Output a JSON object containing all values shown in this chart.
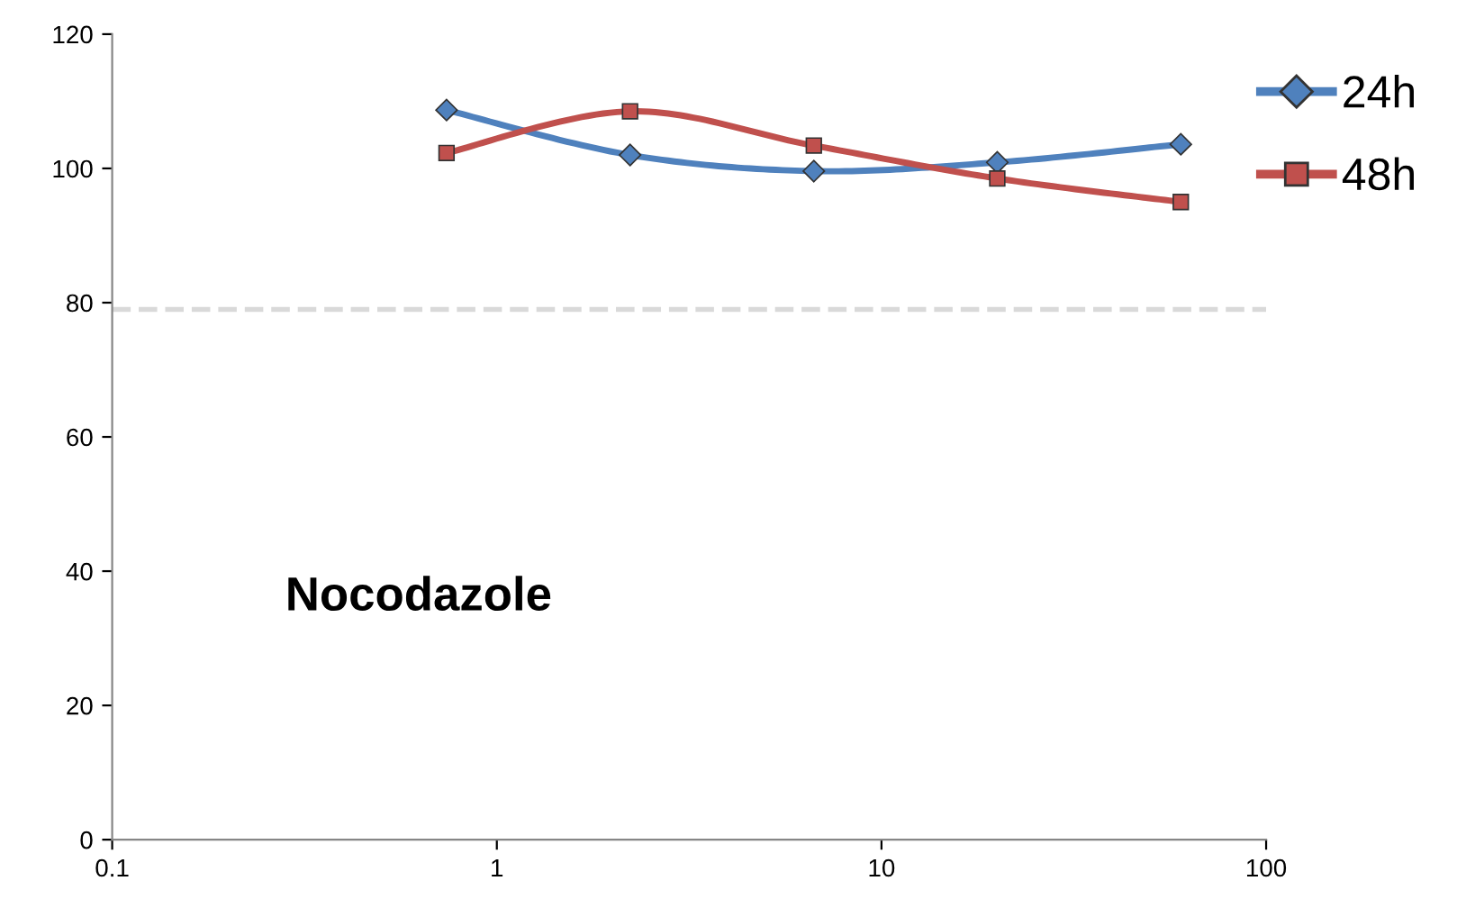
{
  "chart_data": {
    "type": "line",
    "x": [
      0.74,
      2.22,
      6.67,
      20,
      60
    ],
    "series": [
      {
        "name": "24h",
        "color": "#4f81bd",
        "marker": "diamond",
        "values": [
          108.7,
          102,
          99.6,
          100.9,
          103.6
        ]
      },
      {
        "name": "48h",
        "color": "#c0504d",
        "marker": "square",
        "values": [
          102.3,
          108.5,
          103.4,
          98.5,
          95
        ]
      }
    ],
    "log": "x",
    "xlim": [
      0.1,
      100
    ],
    "xticks": [
      0.1,
      1,
      10,
      100
    ],
    "ylim": [
      0,
      120
    ],
    "yticks": [
      0,
      20,
      40,
      60,
      80,
      100,
      120
    ],
    "ref_lines": [
      {
        "axis": "y",
        "value": 79,
        "color": "#d9d9d9",
        "line_style": "dashed"
      }
    ],
    "annotations": [
      "Nocodazole"
    ],
    "legend": "top right",
    "grid": false,
    "line_style": "solid"
  }
}
